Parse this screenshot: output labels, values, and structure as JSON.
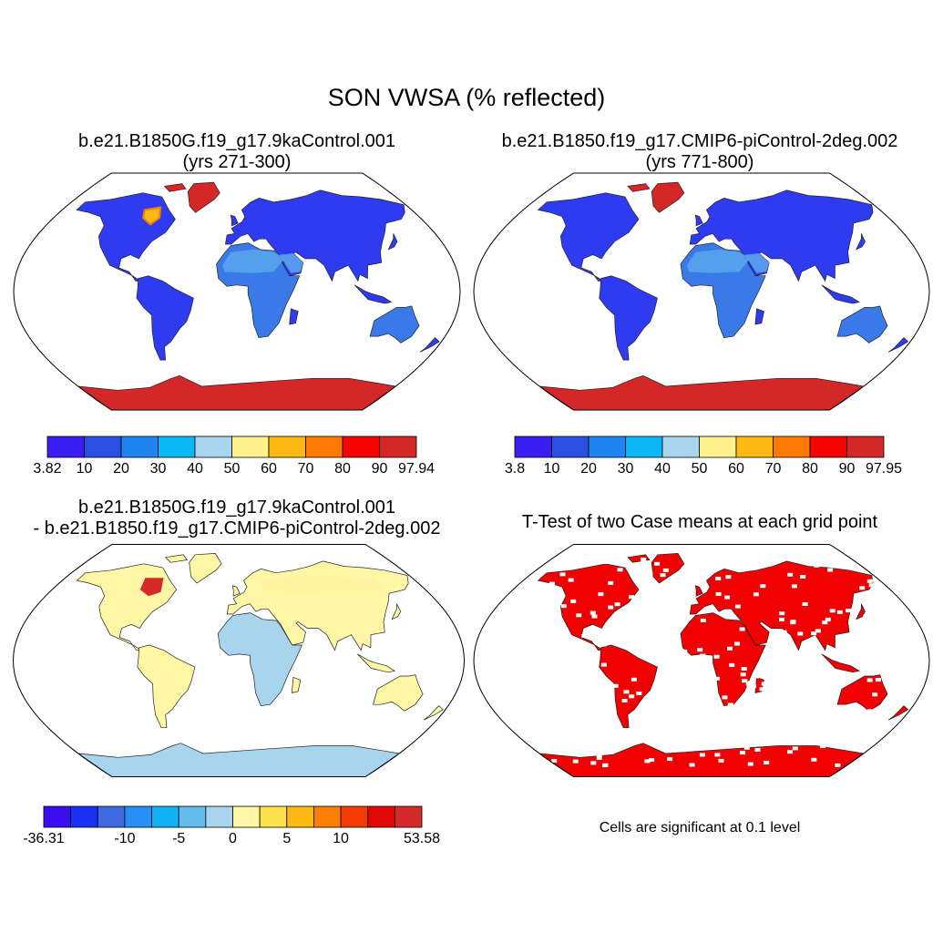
{
  "main_title": "SON VWSA (% reflected)",
  "panels": [
    {
      "title_line1": "b.e21.B1850G.f19_g17.9kaControl.001",
      "title_line2": "(yrs 271-300)",
      "colorbar": {
        "colors": [
          "#3a1ef2",
          "#2c4fe0",
          "#1f84f0",
          "#0db7f5",
          "#a8d4ee",
          "#fff18c",
          "#fdba12",
          "#fc7a04",
          "#f40502",
          "#d32728"
        ],
        "labels": [
          "3.82",
          "10",
          "20",
          "30",
          "40",
          "50",
          "60",
          "70",
          "80",
          "90",
          "97.94"
        ]
      }
    },
    {
      "title_line1": "b.e21.B1850.f19_g17.CMIP6-piControl-2deg.002",
      "title_line2": "(yrs 771-800)",
      "colorbar": {
        "colors": [
          "#3a1ef2",
          "#2c4fe0",
          "#1f84f0",
          "#0db7f5",
          "#a8d4ee",
          "#fff18c",
          "#fdba12",
          "#fc7a04",
          "#f40502",
          "#d32728"
        ],
        "labels": [
          "3.8",
          "10",
          "20",
          "30",
          "40",
          "50",
          "60",
          "70",
          "80",
          "90",
          "97.95"
        ]
      }
    },
    {
      "title_line1": "b.e21.B1850G.f19_g17.9kaControl.001",
      "title_line2": "- b.e21.B1850.f19_g17.CMIP6-piControl-2deg.002",
      "colorbar": {
        "colors": [
          "#3b0ef0",
          "#1b2ff5",
          "#3f6ae0",
          "#2a8ff5",
          "#12b0f4",
          "#62bdeb",
          "#a8d4ee",
          "#fff6a6",
          "#ffe04d",
          "#fdba12",
          "#fc7f05",
          "#f53c04",
          "#e00806",
          "#d42a2a"
        ],
        "labels": [
          "-36.31",
          "-10",
          "-5",
          "0",
          "5",
          "10",
          "53.58"
        ]
      }
    },
    {
      "title_line1": "T-Test of two Case means at each grid point",
      "note": "Cells are significant at 0.1 level"
    }
  ],
  "map_colors": {
    "ocean": "#ffffff",
    "land_blue": "#2e3bf0",
    "land_mid": "#3a7ae8",
    "desert_light": "#9fc9ee",
    "ice_red": "#d32728",
    "diff_yellow": "#fff6a6",
    "diff_lightblue": "#a8d4ee",
    "diff_red": "#d42a2a",
    "sig_red": "#f00000"
  }
}
